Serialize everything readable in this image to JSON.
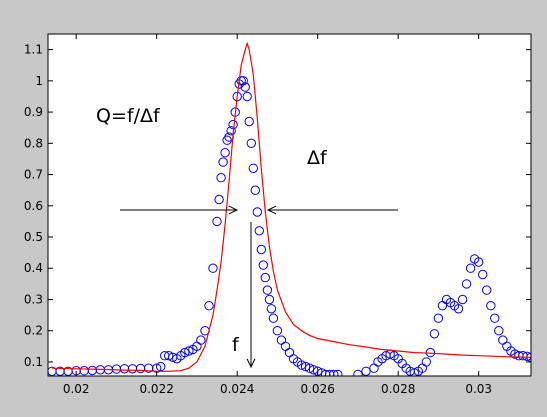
{
  "chart_data": {
    "type": "scatter",
    "title": "",
    "xlabel": "",
    "ylabel": "",
    "xlim": [
      0.0193,
      0.0313
    ],
    "ylim": [
      0.055,
      1.15
    ],
    "grid": false,
    "x_ticks": [
      {
        "value": 0.02,
        "label": "0.02"
      },
      {
        "value": 0.022,
        "label": "0.022"
      },
      {
        "value": 0.024,
        "label": "0.024"
      },
      {
        "value": 0.026,
        "label": "0.026"
      },
      {
        "value": 0.028,
        "label": "0.028"
      },
      {
        "value": 0.03,
        "label": "0.03"
      }
    ],
    "y_ticks": [
      {
        "value": 0.1,
        "label": "0.1"
      },
      {
        "value": 0.2,
        "label": "0.2"
      },
      {
        "value": 0.3,
        "label": "0.3"
      },
      {
        "value": 0.4,
        "label": "0.4"
      },
      {
        "value": 0.5,
        "label": "0.5"
      },
      {
        "value": 0.6,
        "label": "0.6"
      },
      {
        "value": 0.7,
        "label": "0.7"
      },
      {
        "value": 0.8,
        "label": "0.8"
      },
      {
        "value": 0.9,
        "label": "0.9"
      },
      {
        "value": 1.0,
        "label": "1"
      },
      {
        "value": 1.1,
        "label": "1.1"
      }
    ],
    "series": [
      {
        "style": "circle-markers",
        "color": "#0000ff",
        "x": [
          0.0194,
          0.0196,
          0.0198,
          0.02,
          0.0202,
          0.0204,
          0.0206,
          0.0208,
          0.021,
          0.0212,
          0.0214,
          0.0216,
          0.0218,
          0.022,
          0.0221,
          0.0222,
          0.0223,
          0.0224,
          0.0225,
          0.0226,
          0.0227,
          0.0228,
          0.0229,
          0.023,
          0.0231,
          0.0232,
          0.0233,
          0.0234,
          0.0235,
          0.02355,
          0.0236,
          0.02365,
          0.0237,
          0.02375,
          0.0238,
          0.02385,
          0.0239,
          0.02395,
          0.024,
          0.02405,
          0.0241,
          0.02415,
          0.0242,
          0.02425,
          0.0243,
          0.02435,
          0.0244,
          0.02445,
          0.0245,
          0.02455,
          0.0246,
          0.02465,
          0.0247,
          0.02475,
          0.0248,
          0.02485,
          0.0249,
          0.025,
          0.0251,
          0.0252,
          0.0253,
          0.0254,
          0.0255,
          0.0256,
          0.0257,
          0.0258,
          0.0259,
          0.026,
          0.0261,
          0.0262,
          0.0263,
          0.0264,
          0.0265,
          0.027,
          0.0272,
          0.0274,
          0.0275,
          0.0276,
          0.0277,
          0.0278,
          0.0279,
          0.028,
          0.0281,
          0.0282,
          0.0283,
          0.0284,
          0.0285,
          0.0286,
          0.0287,
          0.0288,
          0.0289,
          0.029,
          0.0291,
          0.0292,
          0.0293,
          0.0294,
          0.0295,
          0.0296,
          0.0297,
          0.0298,
          0.0299,
          0.03,
          0.0301,
          0.0302,
          0.0303,
          0.0304,
          0.0305,
          0.0306,
          0.0307,
          0.0308,
          0.0309,
          0.031,
          0.0311,
          0.0312,
          0.0313
        ],
        "y": [
          0.07,
          0.07,
          0.07,
          0.072,
          0.072,
          0.073,
          0.075,
          0.075,
          0.077,
          0.078,
          0.078,
          0.079,
          0.08,
          0.08,
          0.085,
          0.12,
          0.12,
          0.115,
          0.11,
          0.12,
          0.13,
          0.135,
          0.14,
          0.15,
          0.17,
          0.2,
          0.28,
          0.4,
          0.55,
          0.62,
          0.69,
          0.74,
          0.77,
          0.81,
          0.82,
          0.84,
          0.86,
          0.9,
          0.95,
          0.99,
          1.0,
          1.0,
          0.98,
          0.95,
          0.87,
          0.8,
          0.72,
          0.65,
          0.58,
          0.52,
          0.46,
          0.41,
          0.37,
          0.33,
          0.3,
          0.27,
          0.24,
          0.2,
          0.17,
          0.15,
          0.13,
          0.11,
          0.1,
          0.09,
          0.085,
          0.08,
          0.075,
          0.07,
          0.065,
          0.06,
          0.06,
          0.06,
          0.06,
          0.06,
          0.07,
          0.08,
          0.1,
          0.11,
          0.12,
          0.125,
          0.12,
          0.11,
          0.095,
          0.08,
          0.07,
          0.065,
          0.07,
          0.08,
          0.1,
          0.13,
          0.19,
          0.24,
          0.28,
          0.3,
          0.29,
          0.28,
          0.27,
          0.3,
          0.35,
          0.4,
          0.43,
          0.42,
          0.38,
          0.33,
          0.28,
          0.24,
          0.2,
          0.17,
          0.15,
          0.135,
          0.125,
          0.12,
          0.12,
          0.118,
          0.115
        ]
      },
      {
        "style": "line",
        "color": "#ff0000",
        "x": [
          0.0194,
          0.02,
          0.0206,
          0.0212,
          0.0216,
          0.022,
          0.0223,
          0.0226,
          0.0228,
          0.023,
          0.0232,
          0.0234,
          0.0235,
          0.0236,
          0.0237,
          0.0238,
          0.0239,
          0.024,
          0.0241,
          0.0242,
          0.02425,
          0.0243,
          0.0244,
          0.0245,
          0.0246,
          0.0247,
          0.0248,
          0.0249,
          0.025,
          0.0252,
          0.0254,
          0.0256,
          0.0258,
          0.026,
          0.0264,
          0.0268,
          0.0272,
          0.0276,
          0.028,
          0.0284,
          0.0288,
          0.0292,
          0.0296,
          0.03,
          0.0304,
          0.0308,
          0.0313
        ],
        "y": [
          0.08,
          0.078,
          0.076,
          0.074,
          0.073,
          0.07,
          0.07,
          0.072,
          0.08,
          0.1,
          0.15,
          0.25,
          0.33,
          0.42,
          0.54,
          0.68,
          0.83,
          0.95,
          1.05,
          1.1,
          1.12,
          1.1,
          1.02,
          0.88,
          0.72,
          0.58,
          0.47,
          0.39,
          0.33,
          0.26,
          0.22,
          0.2,
          0.185,
          0.175,
          0.165,
          0.155,
          0.148,
          0.14,
          0.135,
          0.13,
          0.128,
          0.125,
          0.122,
          0.12,
          0.118,
          0.116,
          0.115
        ]
      }
    ],
    "annotations": [
      {
        "text": "Q=f/Δf"
      },
      {
        "text": "Δf"
      },
      {
        "text": "f"
      }
    ]
  },
  "colors": {
    "figure_background": "#c8c8c8",
    "axes_background": "#ffffff",
    "markers": "#0000ff",
    "fit_line": "#ff0000",
    "annotation": "#000000"
  }
}
